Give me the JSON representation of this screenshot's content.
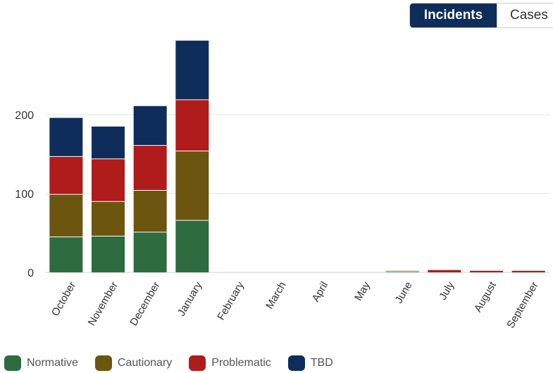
{
  "toggle": {
    "active_label": "Incidents",
    "inactive_label": "Cases"
  },
  "chart_data": {
    "type": "bar",
    "stacked": true,
    "categories": [
      "October",
      "November",
      "December",
      "January",
      "February",
      "March",
      "April",
      "May",
      "June",
      "July",
      "August",
      "September"
    ],
    "series": [
      {
        "name": "Normative",
        "color": "#2e6b3f",
        "values": [
          45,
          46,
          51,
          66,
          0,
          0,
          0,
          0,
          1,
          0,
          0,
          0
        ]
      },
      {
        "name": "Cautionary",
        "color": "#6b550f",
        "values": [
          54,
          44,
          53,
          88,
          0,
          0,
          0,
          0,
          1,
          0,
          0,
          0
        ]
      },
      {
        "name": "Problematic",
        "color": "#b01b1b",
        "values": [
          48,
          54,
          57,
          65,
          0,
          0,
          0,
          0,
          0,
          3,
          2,
          2
        ]
      },
      {
        "name": "TBD",
        "color": "#0f2d5a",
        "values": [
          49,
          41,
          50,
          75,
          0,
          0,
          0,
          0,
          0,
          0,
          0,
          0
        ]
      }
    ],
    "ylim": [
      0,
      300
    ],
    "yticks": [
      0,
      100,
      200
    ],
    "grid": true,
    "legend_position": "bottom-left"
  }
}
